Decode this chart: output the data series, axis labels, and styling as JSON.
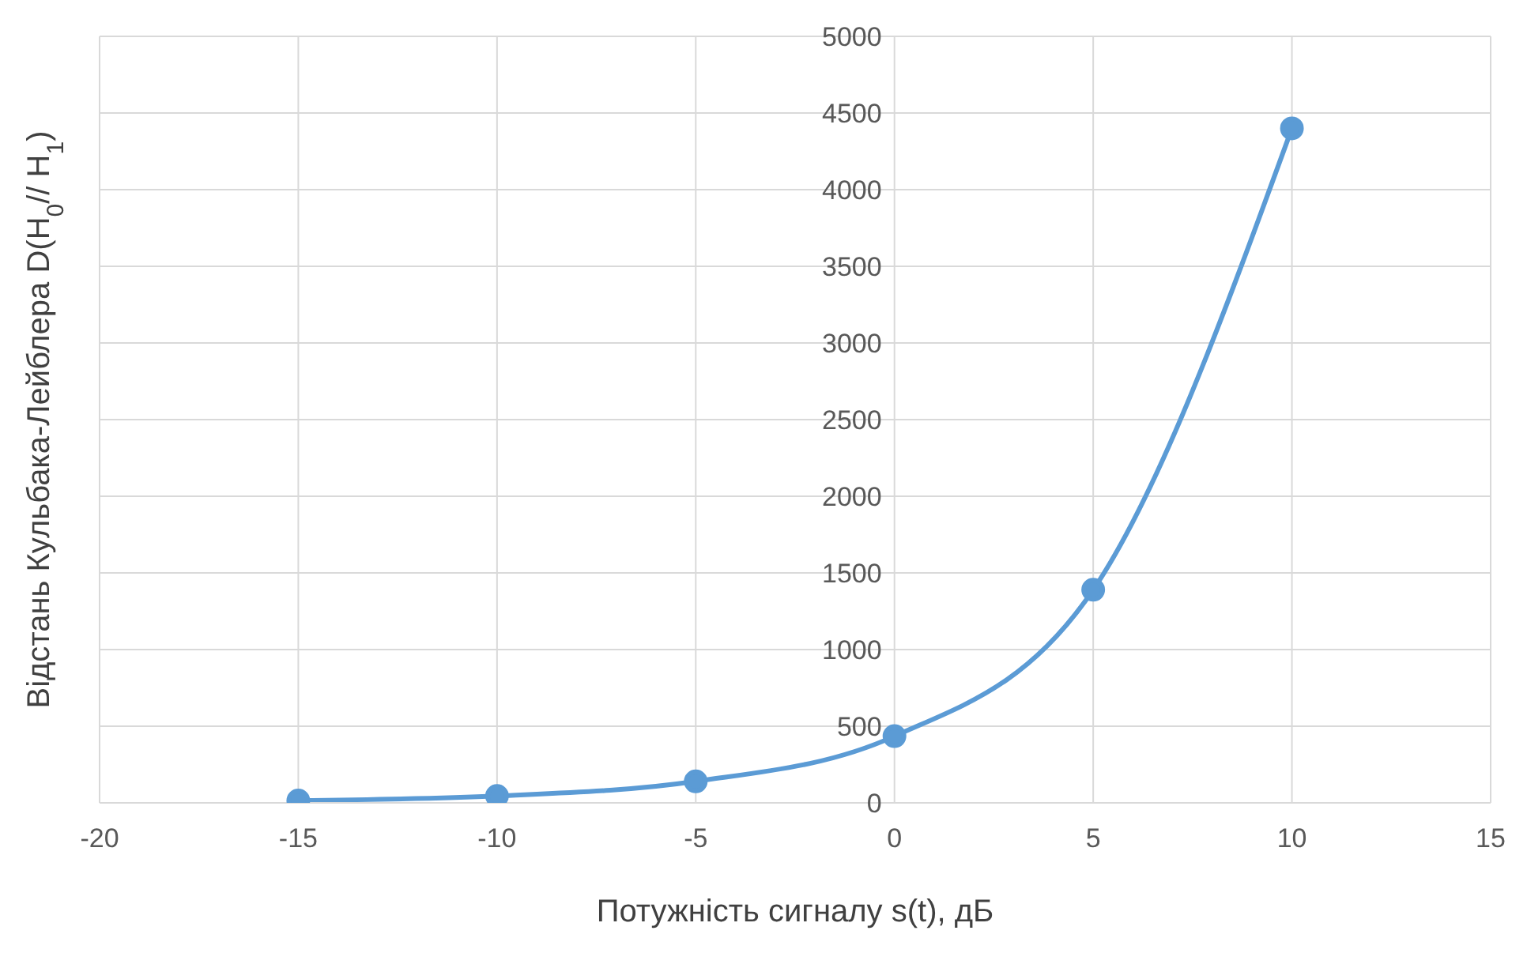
{
  "chart_data": {
    "type": "line",
    "xlabel": "Потужність  сигналу  s(t),  дБ",
    "ylabel": "Відстань  Кульбака-Лейблера  D(H$_{0}$// H$_{1}$)",
    "x": [
      -15,
      -10,
      -5,
      0,
      5,
      10
    ],
    "series": [
      {
        "color": "#5b9bd5",
        "values": [
          15,
          45,
          140,
          435,
          1390,
          4400
        ]
      }
    ],
    "xlim": [
      -20,
      15
    ],
    "xticks": [
      -20,
      -15,
      -10,
      -5,
      0,
      5,
      10,
      15
    ],
    "ylim": [
      0,
      5000
    ],
    "yticks": [
      0,
      500,
      1000,
      1500,
      2000,
      2500,
      3000,
      3500,
      4000,
      4500,
      5000
    ],
    "grid": true,
    "marker": "circle",
    "line_style": "solid",
    "legend": false
  }
}
